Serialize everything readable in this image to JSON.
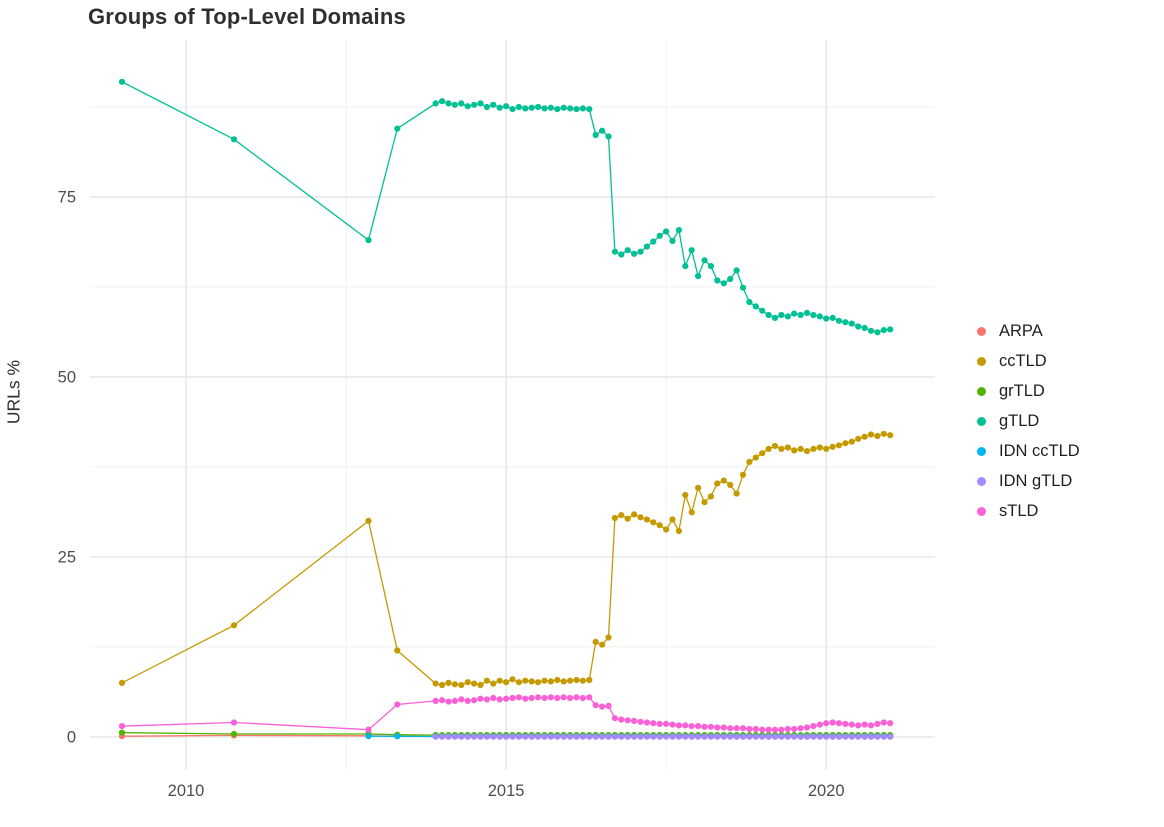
{
  "chart_data": {
    "type": "line",
    "title": "Groups of Top-Level Domains",
    "xlabel": "",
    "ylabel": "URLs %",
    "legend_position": "right",
    "grid": true,
    "xlim": [
      2008.5,
      2021.7
    ],
    "ylim": [
      -4.6,
      96.8
    ],
    "xticks": [
      2010,
      2015,
      2020
    ],
    "yticks": [
      0,
      25,
      50,
      75
    ],
    "minor_xticks": [
      2012.5,
      2017.5
    ],
    "minor_yticks": [
      12.5,
      37.5,
      62.5,
      87.5
    ],
    "style": {
      "background": "#ffffff",
      "grid_major_color": "#e3e3e3",
      "grid_minor_color": "#f0f0f0",
      "tick_label_color": "#4d4d4d",
      "title_color": "#2f2f2f"
    },
    "x": [
      2009,
      2010.75,
      2012.85,
      2013.3,
      2013.9,
      2014,
      2014.1,
      2014.2,
      2014.3,
      2014.4,
      2014.5,
      2014.6,
      2014.7,
      2014.8,
      2014.9,
      2015,
      2015.1,
      2015.2,
      2015.3,
      2015.4,
      2015.5,
      2015.6,
      2015.7,
      2015.8,
      2015.9,
      2016,
      2016.1,
      2016.2,
      2016.3,
      2016.4,
      2016.5,
      2016.6,
      2016.7,
      2016.8,
      2016.9,
      2017,
      2017.1,
      2017.2,
      2017.3,
      2017.4,
      2017.5,
      2017.6,
      2017.7,
      2017.8,
      2017.9,
      2018,
      2018.1,
      2018.2,
      2018.3,
      2018.4,
      2018.5,
      2018.6,
      2018.7,
      2018.8,
      2018.9,
      2019,
      2019.1,
      2019.2,
      2019.3,
      2019.4,
      2019.5,
      2019.6,
      2019.7,
      2019.8,
      2019.9,
      2020,
      2020.1,
      2020.2,
      2020.3,
      2020.4,
      2020.5,
      2020.6,
      2020.7,
      2020.8,
      2020.9,
      2021
    ],
    "series": [
      {
        "name": "ARPA",
        "color": "#F8766D",
        "values": [
          0.1,
          0.2,
          0.15,
          0.1,
          0.05,
          0.05,
          0.05,
          0.05,
          0.05,
          0.05,
          0.05,
          0.05,
          0.05,
          0.05,
          0.05,
          0.05,
          0.05,
          0.05,
          0.05,
          0.05,
          0.05,
          0.05,
          0.05,
          0.05,
          0.05,
          0.05,
          0.05,
          0.05,
          0.05,
          0.05,
          0.05,
          0.05,
          0.05,
          0.05,
          0.05,
          0.05,
          0.05,
          0.05,
          0.05,
          0.05,
          0.05,
          0.05,
          0.05,
          0.05,
          0.05,
          0.05,
          0.05,
          0.05,
          0.05,
          0.05,
          0.05,
          0.05,
          0.05,
          0.05,
          0.05,
          0.05,
          0.05,
          0.05,
          0.05,
          0.05,
          0.05,
          0.05,
          0.05,
          0.05,
          0.05,
          0.05,
          0.05,
          0.05,
          0.05,
          0.05,
          0.05,
          0.05,
          0.05,
          0.05,
          0.05,
          0.05
        ]
      },
      {
        "name": "ccTLD",
        "color": "#C49A00",
        "values": [
          7.5,
          15.5,
          30,
          12,
          7.4,
          7.2,
          7.5,
          7.3,
          7.2,
          7.6,
          7.4,
          7.2,
          7.8,
          7.4,
          7.8,
          7.6,
          8,
          7.6,
          7.8,
          7.7,
          7.6,
          7.8,
          7.7,
          7.9,
          7.7,
          7.8,
          7.9,
          7.8,
          7.9,
          13.2,
          12.8,
          13.8,
          30.4,
          30.8,
          30.3,
          30.9,
          30.5,
          30.2,
          29.8,
          29.4,
          28.8,
          30.2,
          28.6,
          33.6,
          31.2,
          34.6,
          32.6,
          33.4,
          35.2,
          35.6,
          35,
          33.8,
          36.4,
          38.2,
          38.8,
          39.4,
          40,
          40.4,
          40,
          40.2,
          39.8,
          40,
          39.7,
          40,
          40.2,
          40,
          40.3,
          40.5,
          40.8,
          41,
          41.4,
          41.7,
          42,
          41.8,
          42.1,
          41.9
        ]
      },
      {
        "name": "grTLD",
        "color": "#53B400",
        "values": [
          0.6,
          0.4,
          0.4,
          0.3,
          0.25,
          0.25,
          0.25,
          0.25,
          0.25,
          0.25,
          0.25,
          0.25,
          0.25,
          0.25,
          0.25,
          0.25,
          0.25,
          0.25,
          0.25,
          0.25,
          0.25,
          0.25,
          0.25,
          0.25,
          0.25,
          0.25,
          0.25,
          0.25,
          0.25,
          0.25,
          0.25,
          0.25,
          0.25,
          0.25,
          0.25,
          0.25,
          0.25,
          0.25,
          0.25,
          0.25,
          0.25,
          0.25,
          0.25,
          0.25,
          0.25,
          0.25,
          0.25,
          0.25,
          0.25,
          0.25,
          0.25,
          0.25,
          0.25,
          0.25,
          0.25,
          0.25,
          0.25,
          0.25,
          0.25,
          0.25,
          0.25,
          0.25,
          0.25,
          0.25,
          0.25,
          0.25,
          0.25,
          0.25,
          0.25,
          0.25,
          0.25,
          0.25,
          0.25,
          0.25,
          0.25,
          0.25
        ]
      },
      {
        "name": "gTLD",
        "color": "#00C094",
        "values": [
          91,
          83,
          69,
          84.5,
          88,
          88.3,
          88,
          87.8,
          88,
          87.6,
          87.8,
          88,
          87.5,
          87.8,
          87.4,
          87.6,
          87.2,
          87.5,
          87.3,
          87.4,
          87.5,
          87.3,
          87.4,
          87.2,
          87.4,
          87.3,
          87.2,
          87.3,
          87.2,
          83.6,
          84.2,
          83.4,
          67.4,
          67,
          67.6,
          67.1,
          67.4,
          68.1,
          68.8,
          69.6,
          70.2,
          68.9,
          70.4,
          65.4,
          67.6,
          64,
          66.2,
          65.4,
          63.4,
          63,
          63.6,
          64.8,
          62.4,
          60.4,
          59.8,
          59.2,
          58.6,
          58.2,
          58.6,
          58.4,
          58.8,
          58.6,
          58.9,
          58.6,
          58.4,
          58.1,
          58.2,
          57.8,
          57.6,
          57.4,
          57,
          56.8,
          56.4,
          56.2,
          56.5,
          56.6
        ]
      },
      {
        "name": "IDN ccTLD",
        "color": "#00B6EB",
        "values": [
          null,
          null,
          0.1,
          0.08,
          0.05,
          0.05,
          0.05,
          0.05,
          0.05,
          0.05,
          0.05,
          0.05,
          0.05,
          0.05,
          0.05,
          0.05,
          0.05,
          0.05,
          0.05,
          0.05,
          0.05,
          0.05,
          0.05,
          0.05,
          0.05,
          0.05,
          0.05,
          0.05,
          0.05,
          0.05,
          0.05,
          0.05,
          0.05,
          0.05,
          0.05,
          0.05,
          0.05,
          0.05,
          0.05,
          0.05,
          0.05,
          0.05,
          0.05,
          0.05,
          0.05,
          0.05,
          0.05,
          0.05,
          0.05,
          0.05,
          0.05,
          0.05,
          0.05,
          0.05,
          0.05,
          0.05,
          0.05,
          0.05,
          0.05,
          0.05,
          0.05,
          0.05,
          0.05,
          0.05,
          0.05,
          0.05,
          0.05,
          0.05,
          0.05,
          0.05,
          0.05,
          0.05,
          0.05,
          0.05,
          0.05,
          0.05
        ]
      },
      {
        "name": "IDN gTLD",
        "color": "#A58AFF",
        "values": [
          null,
          null,
          null,
          null,
          0.03,
          0.03,
          0.03,
          0.03,
          0.03,
          0.03,
          0.03,
          0.03,
          0.03,
          0.03,
          0.03,
          0.03,
          0.03,
          0.03,
          0.03,
          0.03,
          0.03,
          0.03,
          0.03,
          0.03,
          0.03,
          0.03,
          0.03,
          0.03,
          0.03,
          0.03,
          0.03,
          0.03,
          0.03,
          0.03,
          0.03,
          0.03,
          0.03,
          0.03,
          0.03,
          0.03,
          0.03,
          0.03,
          0.03,
          0.03,
          0.03,
          0.03,
          0.03,
          0.03,
          0.03,
          0.03,
          0.03,
          0.03,
          0.03,
          0.03,
          0.03,
          0.03,
          0.03,
          0.03,
          0.03,
          0.03,
          0.03,
          0.03,
          0.03,
          0.03,
          0.03,
          0.03,
          0.03,
          0.03,
          0.03,
          0.03,
          0.03,
          0.03,
          0.03,
          0.03,
          0.03,
          0.03
        ]
      },
      {
        "name": "sTLD",
        "color": "#FB61D7",
        "values": [
          1.5,
          2,
          1,
          4.5,
          5,
          5.1,
          4.9,
          5,
          5.2,
          5,
          5.1,
          5.3,
          5.2,
          5.4,
          5.2,
          5.3,
          5.4,
          5.5,
          5.3,
          5.4,
          5.5,
          5.4,
          5.5,
          5.4,
          5.5,
          5.4,
          5.5,
          5.4,
          5.5,
          4.4,
          4.2,
          4.3,
          2.6,
          2.4,
          2.3,
          2.2,
          2.1,
          2,
          1.9,
          1.8,
          1.8,
          1.7,
          1.6,
          1.6,
          1.5,
          1.5,
          1.4,
          1.4,
          1.3,
          1.3,
          1.2,
          1.2,
          1.2,
          1.1,
          1.1,
          1,
          1,
          1,
          1,
          1.1,
          1.1,
          1.2,
          1.3,
          1.5,
          1.7,
          1.9,
          2,
          1.9,
          1.8,
          1.7,
          1.6,
          1.7,
          1.6,
          1.8,
          2,
          1.9
        ]
      }
    ]
  }
}
